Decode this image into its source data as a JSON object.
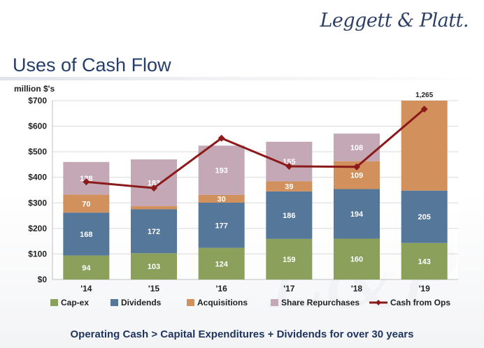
{
  "logo": "Leggett & Platt.",
  "title": "Uses of Cash Flow",
  "footer": "Operating Cash > Capital Expenditures + Dividends for over 30 years",
  "colors": {
    "capex": "#8aa05b",
    "dividends": "#55779a",
    "acquisitions": "#d2915c",
    "repurchases": "#c4a8b5",
    "cfo": "#8c1a1a"
  },
  "chart_data": {
    "type": "bar",
    "stacked": true,
    "unit_label": "million $'s",
    "categories": [
      "'14",
      "'15",
      "'16",
      "'17",
      "'18",
      "'19"
    ],
    "ylim": [
      0,
      700
    ],
    "yticks": [
      0,
      100,
      200,
      300,
      400,
      500,
      600,
      700
    ],
    "ytick_labels": [
      "$0",
      "$100",
      "$200",
      "$300",
      "$400",
      "$500",
      "$600",
      "$700"
    ],
    "series": [
      {
        "name": "Cap-ex",
        "key": "capex",
        "values": [
          94,
          103,
          124,
          159,
          160,
          143
        ],
        "labels": [
          "94",
          "103",
          "124",
          "159",
          "160",
          "143"
        ]
      },
      {
        "name": "Dividends",
        "key": "dividends",
        "values": [
          168,
          172,
          177,
          186,
          194,
          205
        ],
        "labels": [
          "168",
          "172",
          "177",
          "186",
          "194",
          "205"
        ]
      },
      {
        "name": "Acquisitions",
        "key": "acquisitions",
        "values": [
          70,
          12,
          30,
          39,
          109,
          352
        ],
        "labels": [
          "70",
          "",
          "30",
          "39",
          "109",
          ""
        ]
      },
      {
        "name": "Share Repurchases",
        "key": "repurchases",
        "values": [
          128,
          183,
          193,
          155,
          108,
          0
        ],
        "labels": [
          "128",
          "183",
          "193",
          "155",
          "108",
          ""
        ]
      }
    ],
    "line": {
      "name": "Cash from Ops",
      "key": "cfo",
      "values": [
        382,
        358,
        553,
        443,
        441,
        667
      ]
    },
    "overflow_label": {
      "category_index": 5,
      "text": "1,265"
    },
    "legend": [
      "Cap-ex",
      "Dividends",
      "Acquisitions",
      "Share Repurchases",
      "Cash from Ops"
    ]
  }
}
